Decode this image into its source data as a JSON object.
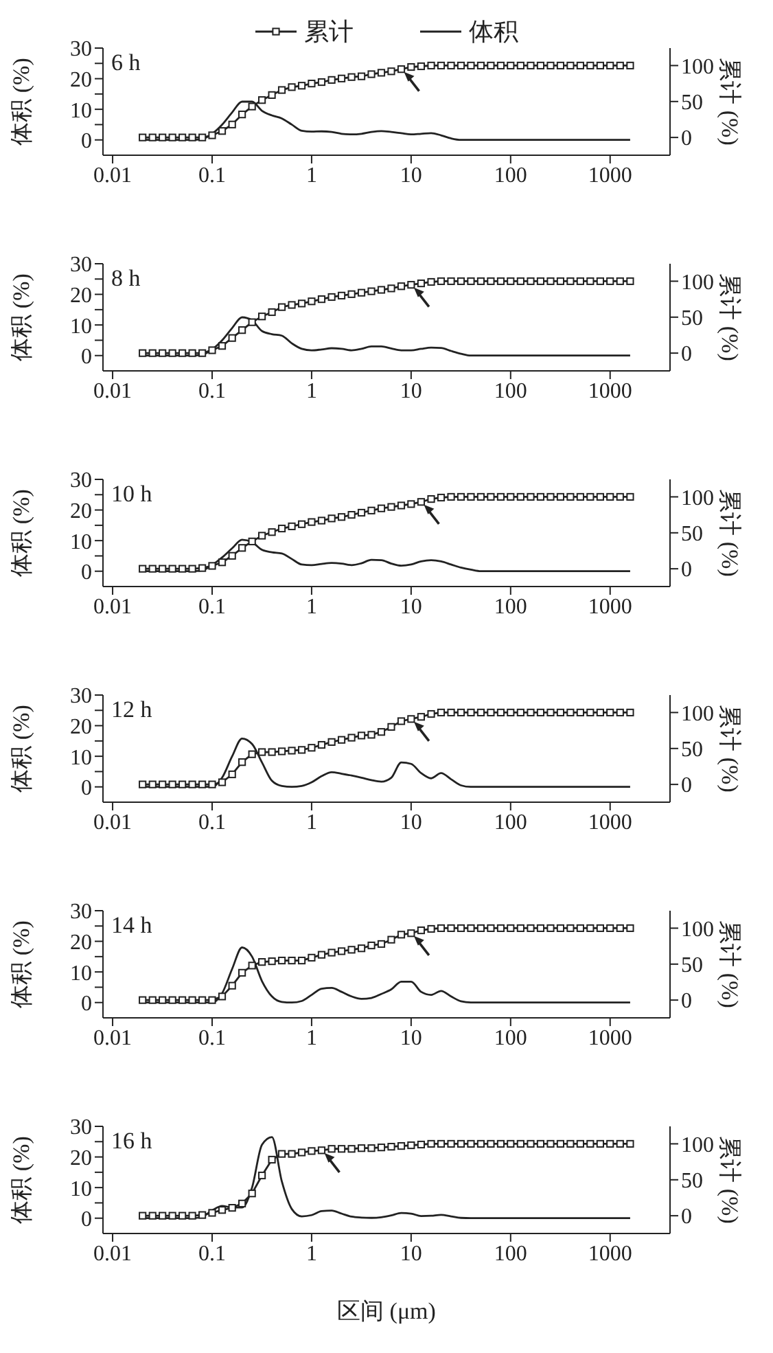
{
  "chart_data": [
    {
      "type": "line",
      "title": "6 h",
      "ylabel": "体积 (%)",
      "y2label": "累计 (%)",
      "log": "x",
      "legend": "top",
      "xlim": [
        0.008,
        4000
      ],
      "xticks": [
        0.01,
        0.1,
        1,
        10,
        100,
        1000
      ],
      "ylim": [
        -5,
        30
      ],
      "yticks": [
        0,
        {
          "value": 5,
          "label": null
        },
        10,
        {
          "value": 15,
          "label": null
        },
        20,
        {
          "value": 25,
          "label": null
        },
        30
      ],
      "y2lim": [
        -24.7,
        124.3
      ],
      "y2ticks": [
        0,
        50,
        100
      ],
      "x": [
        0.02,
        0.0252,
        0.0317,
        0.0399,
        0.0502,
        0.0632,
        0.0796,
        0.1,
        0.126,
        0.159,
        0.2,
        0.252,
        0.317,
        0.399,
        0.502,
        0.632,
        0.796,
        1,
        1.26,
        1.59,
        2,
        2.52,
        3.17,
        3.99,
        5.02,
        6.32,
        7.96,
        10,
        12.6,
        15.9,
        20,
        25.2,
        31.7,
        39.9,
        50.2,
        63.2,
        79.6,
        100,
        126,
        159,
        200,
        252,
        317,
        399,
        502,
        632,
        796,
        1000,
        1260,
        1590
      ],
      "series": [
        {
          "name": "累计",
          "axis": "y2",
          "marker": "square",
          "color": "#222222",
          "values": [
            0,
            0,
            0,
            0,
            0,
            0,
            0,
            3,
            9,
            18,
            32,
            43,
            52,
            59,
            66,
            70,
            72,
            75,
            77,
            80,
            82,
            84,
            85,
            88,
            90,
            92,
            95,
            98,
            99,
            100,
            100,
            100,
            100,
            100,
            100,
            100,
            100,
            100,
            100,
            100,
            100,
            100,
            100,
            100,
            100,
            100,
            100,
            100,
            100,
            100
          ]
        },
        {
          "name": "体积",
          "marker": "none",
          "color": "#222222",
          "values": [
            0,
            0,
            0,
            0,
            0,
            0,
            0.3,
            2,
            5,
            9,
            12.5,
            12.5,
            9.5,
            8,
            7,
            5,
            3,
            2.7,
            2.8,
            2.6,
            2,
            1.8,
            2,
            2.6,
            2.9,
            2.6,
            2.2,
            1.8,
            2,
            2.2,
            1.5,
            0.5,
            0,
            0,
            0,
            0,
            0,
            0,
            0,
            0,
            0,
            0,
            0,
            0,
            0,
            0,
            0,
            0,
            0,
            0
          ]
        }
      ]
    },
    {
      "type": "line",
      "title": "8 h",
      "ylabel": "体积 (%)",
      "y2label": "累计 (%)",
      "log": "x",
      "xlim": [
        0.008,
        4000
      ],
      "xticks": [
        0.01,
        0.1,
        1,
        10,
        100,
        1000
      ],
      "ylim": [
        -5,
        30
      ],
      "yticks": [
        0,
        {
          "value": 5,
          "label": null
        },
        10,
        {
          "value": 15,
          "label": null
        },
        20,
        {
          "value": 25,
          "label": null
        },
        30
      ],
      "y2lim": [
        -24.7,
        124.3
      ],
      "y2ticks": [
        0,
        50,
        100
      ],
      "x": [
        0.02,
        0.0252,
        0.0317,
        0.0399,
        0.0502,
        0.0632,
        0.0796,
        0.1,
        0.126,
        0.159,
        0.2,
        0.252,
        0.317,
        0.399,
        0.502,
        0.632,
        0.796,
        1,
        1.26,
        1.59,
        2,
        2.52,
        3.17,
        3.99,
        5.02,
        6.32,
        7.96,
        10,
        12.6,
        15.9,
        20,
        25.2,
        31.7,
        39.9,
        50.2,
        63.2,
        79.6,
        100,
        126,
        159,
        200,
        252,
        317,
        399,
        502,
        632,
        796,
        1000,
        1260,
        1590
      ],
      "series": [
        {
          "axis": "y2",
          "marker": "square",
          "color": "#222222",
          "values": [
            0,
            0,
            0,
            0,
            0,
            0,
            0,
            4,
            10,
            21,
            32,
            43,
            51,
            57,
            64,
            67,
            69,
            72,
            75,
            78,
            80,
            82,
            84,
            86,
            88,
            90,
            93,
            95,
            97,
            99,
            100,
            100,
            100,
            100,
            100,
            100,
            100,
            100,
            100,
            100,
            100,
            100,
            100,
            100,
            100,
            100,
            100,
            100,
            100,
            100
          ]
        },
        {
          "marker": "none",
          "color": "#222222",
          "values": [
            0,
            0,
            0,
            0,
            0,
            0,
            0.3,
            2,
            5,
            9,
            12.5,
            11.5,
            8,
            7,
            6.5,
            4,
            2.2,
            1.7,
            2,
            2.4,
            2.2,
            1.7,
            2.2,
            3,
            3,
            2.3,
            1.7,
            1.7,
            2.2,
            2.6,
            2.5,
            1.5,
            0.6,
            0,
            0,
            0,
            0,
            0,
            0,
            0,
            0,
            0,
            0,
            0,
            0,
            0,
            0,
            0,
            0,
            0
          ]
        }
      ]
    },
    {
      "type": "line",
      "title": "10 h",
      "ylabel": "体积 (%)",
      "y2label": "累计 (%)",
      "log": "x",
      "xlim": [
        0.008,
        4000
      ],
      "xticks": [
        0.01,
        0.1,
        1,
        10,
        100,
        1000
      ],
      "ylim": [
        -5,
        30
      ],
      "yticks": [
        0,
        {
          "value": 5,
          "label": null
        },
        10,
        {
          "value": 15,
          "label": null
        },
        20,
        {
          "value": 25,
          "label": null
        },
        30
      ],
      "y2lim": [
        -24.7,
        124.3
      ],
      "y2ticks": [
        0,
        50,
        100
      ],
      "x": [
        0.02,
        0.0252,
        0.0317,
        0.0399,
        0.0502,
        0.0632,
        0.0796,
        0.1,
        0.126,
        0.159,
        0.2,
        0.252,
        0.317,
        0.399,
        0.502,
        0.632,
        0.796,
        1,
        1.26,
        1.59,
        2,
        2.52,
        3.17,
        3.99,
        5.02,
        6.32,
        7.96,
        10,
        12.6,
        15.9,
        20,
        25.2,
        31.7,
        39.9,
        50.2,
        63.2,
        79.6,
        100,
        126,
        159,
        200,
        252,
        317,
        399,
        502,
        632,
        796,
        1000,
        1260,
        1590
      ],
      "series": [
        {
          "axis": "y2",
          "marker": "square",
          "color": "#222222",
          "values": [
            0,
            0,
            0,
            0,
            0,
            0,
            1,
            4,
            9,
            18,
            29,
            38,
            46,
            51,
            56,
            59,
            62,
            65,
            67,
            70,
            72,
            75,
            78,
            81,
            84,
            86,
            88,
            90,
            93,
            97,
            99,
            100,
            100,
            100,
            100,
            100,
            100,
            100,
            100,
            100,
            100,
            100,
            100,
            100,
            100,
            100,
            100,
            100,
            100,
            100
          ]
        },
        {
          "marker": "none",
          "color": "#222222",
          "values": [
            0,
            0,
            0,
            0,
            0,
            0,
            0.3,
            2,
            4.5,
            7.5,
            10.3,
            9.5,
            7,
            6.2,
            5.8,
            4,
            2.2,
            2,
            2.4,
            2.7,
            2.5,
            2,
            2.6,
            3.7,
            3.6,
            2.5,
            1.8,
            2.2,
            3.2,
            3.6,
            3.2,
            2.2,
            1.2,
            0.5,
            0,
            0,
            0,
            0,
            0,
            0,
            0,
            0,
            0,
            0,
            0,
            0,
            0,
            0,
            0,
            0
          ]
        }
      ]
    },
    {
      "type": "line",
      "title": "12 h",
      "ylabel": "体积 (%)",
      "y2label": "累计 (%)",
      "log": "x",
      "xlim": [
        0.008,
        4000
      ],
      "xticks": [
        0.01,
        0.1,
        1,
        10,
        100,
        1000
      ],
      "ylim": [
        -5,
        30
      ],
      "yticks": [
        0,
        {
          "value": 5,
          "label": null
        },
        10,
        {
          "value": 15,
          "label": null
        },
        20,
        {
          "value": 25,
          "label": null
        },
        30
      ],
      "y2lim": [
        -24.7,
        124.3
      ],
      "y2ticks": [
        0,
        50,
        100
      ],
      "x": [
        0.02,
        0.0252,
        0.0317,
        0.0399,
        0.0502,
        0.0632,
        0.0796,
        0.1,
        0.126,
        0.159,
        0.2,
        0.252,
        0.317,
        0.399,
        0.502,
        0.632,
        0.796,
        1,
        1.26,
        1.59,
        2,
        2.52,
        3.17,
        3.99,
        5.02,
        6.32,
        7.96,
        10,
        12.6,
        15.9,
        20,
        25.2,
        31.7,
        39.9,
        50.2,
        63.2,
        79.6,
        100,
        126,
        159,
        200,
        252,
        317,
        399,
        502,
        632,
        796,
        1000,
        1260,
        1590
      ],
      "series": [
        {
          "axis": "y2",
          "marker": "square",
          "color": "#222222",
          "values": [
            0,
            0,
            0,
            0,
            0,
            0,
            0,
            0,
            3,
            14,
            31,
            42,
            45,
            45,
            46,
            47,
            48,
            51,
            55,
            59,
            62,
            65,
            68,
            69,
            73,
            80,
            88,
            91,
            94,
            98,
            100,
            100,
            100,
            100,
            100,
            100,
            100,
            100,
            100,
            100,
            100,
            100,
            100,
            100,
            100,
            100,
            100,
            100,
            100,
            100
          ]
        },
        {
          "marker": "none",
          "color": "#222222",
          "values": [
            0,
            0,
            0,
            0,
            0,
            0,
            0,
            0,
            3,
            10,
            15.8,
            14,
            8,
            2,
            0.3,
            0,
            0.3,
            1.5,
            3.5,
            4.8,
            4.3,
            3.7,
            3,
            2.2,
            1.7,
            3,
            8,
            7.5,
            4.5,
            2.8,
            4.5,
            2.5,
            0.5,
            0,
            0,
            0,
            0,
            0,
            0,
            0,
            0,
            0,
            0,
            0,
            0,
            0,
            0,
            0,
            0,
            0
          ]
        }
      ]
    },
    {
      "type": "line",
      "title": "14 h",
      "ylabel": "体积 (%)",
      "y2label": "累计 (%)",
      "log": "x",
      "xlim": [
        0.008,
        4000
      ],
      "xticks": [
        0.01,
        0.1,
        1,
        10,
        100,
        1000
      ],
      "ylim": [
        -5,
        30
      ],
      "yticks": [
        0,
        {
          "value": 5,
          "label": null
        },
        10,
        {
          "value": 15,
          "label": null
        },
        20,
        {
          "value": 25,
          "label": null
        },
        30
      ],
      "y2lim": [
        -24.7,
        124.3
      ],
      "y2ticks": [
        0,
        50,
        100
      ],
      "x": [
        0.02,
        0.0252,
        0.0317,
        0.0399,
        0.0502,
        0.0632,
        0.0796,
        0.1,
        0.126,
        0.159,
        0.2,
        0.252,
        0.317,
        0.399,
        0.502,
        0.632,
        0.796,
        1,
        1.26,
        1.59,
        2,
        2.52,
        3.17,
        3.99,
        5.02,
        6.32,
        7.96,
        10,
        12.6,
        15.9,
        20,
        25.2,
        31.7,
        39.9,
        50.2,
        63.2,
        79.6,
        100,
        126,
        159,
        200,
        252,
        317,
        399,
        502,
        632,
        796,
        1000,
        1260,
        1590
      ],
      "series": [
        {
          "axis": "y2",
          "marker": "square",
          "color": "#222222",
          "values": [
            0,
            0,
            0,
            0,
            0,
            0,
            0,
            0,
            5,
            20,
            38,
            48,
            53,
            54,
            55,
            55,
            55,
            59,
            63,
            66,
            68,
            70,
            72,
            76,
            78,
            84,
            91,
            93,
            97,
            99,
            100,
            100,
            100,
            100,
            100,
            100,
            100,
            100,
            100,
            100,
            100,
            100,
            100,
            100,
            100,
            100,
            100,
            100,
            100,
            100
          ]
        },
        {
          "marker": "none",
          "color": "#222222",
          "values": [
            0,
            0,
            0,
            0,
            0,
            0,
            0,
            0,
            3,
            11,
            18,
            15,
            7,
            2,
            0.2,
            0,
            0.5,
            2.5,
            4.5,
            4.8,
            3.5,
            2,
            1.2,
            1.5,
            2.8,
            4.3,
            6.8,
            6.8,
            3.5,
            2.5,
            3.8,
            2,
            0.4,
            0,
            0,
            0,
            0,
            0,
            0,
            0,
            0,
            0,
            0,
            0,
            0,
            0,
            0,
            0,
            0,
            0
          ]
        }
      ]
    },
    {
      "type": "line",
      "title": "16 h",
      "ylabel": "体积 (%)",
      "y2label": "累计 (%)",
      "xlabel": "区间 (μm)",
      "log": "x",
      "xlim": [
        0.008,
        4000
      ],
      "xticks": [
        0.01,
        0.1,
        1,
        10,
        100,
        1000
      ],
      "ylim": [
        -5,
        30
      ],
      "yticks": [
        0,
        {
          "value": 5,
          "label": null
        },
        10,
        {
          "value": 15,
          "label": null
        },
        20,
        {
          "value": 25,
          "label": null
        },
        30
      ],
      "y2lim": [
        -24.7,
        124.3
      ],
      "y2ticks": [
        0,
        50,
        100
      ],
      "x": [
        0.02,
        0.0252,
        0.0317,
        0.0399,
        0.0502,
        0.0632,
        0.0796,
        0.1,
        0.126,
        0.159,
        0.2,
        0.252,
        0.317,
        0.399,
        0.502,
        0.632,
        0.796,
        1,
        1.26,
        1.59,
        2,
        2.52,
        3.17,
        3.99,
        5.02,
        6.32,
        7.96,
        10,
        12.6,
        15.9,
        20,
        25.2,
        31.7,
        39.9,
        50.2,
        63.2,
        79.6,
        100,
        126,
        159,
        200,
        252,
        317,
        399,
        502,
        632,
        796,
        1000,
        1260,
        1590
      ],
      "series": [
        {
          "axis": "y2",
          "marker": "square",
          "color": "#222222",
          "values": [
            0,
            0,
            0,
            0,
            0,
            0,
            1,
            4,
            8,
            11,
            17,
            31,
            56,
            78,
            86,
            86,
            88,
            90,
            91,
            93,
            93,
            93,
            94,
            94,
            95,
            96,
            97,
            98,
            99,
            100,
            100,
            100,
            100,
            100,
            100,
            100,
            100,
            100,
            100,
            100,
            100,
            100,
            100,
            100,
            100,
            100,
            100,
            100,
            100,
            100
          ]
        },
        {
          "marker": "none",
          "color": "#222222",
          "values": [
            0,
            0,
            0,
            0,
            0,
            0,
            0.5,
            2.5,
            4,
            3.5,
            3.5,
            10,
            24,
            26.5,
            12,
            3,
            0.6,
            1,
            2.3,
            2.5,
            1.5,
            0.5,
            0.2,
            0.1,
            0.3,
            0.9,
            1.7,
            1.5,
            0.7,
            0.8,
            1.1,
            0.6,
            0.1,
            0,
            0,
            0,
            0,
            0,
            0,
            0,
            0,
            0,
            0,
            0,
            0,
            0,
            0,
            0,
            0,
            0
          ]
        }
      ]
    }
  ]
}
